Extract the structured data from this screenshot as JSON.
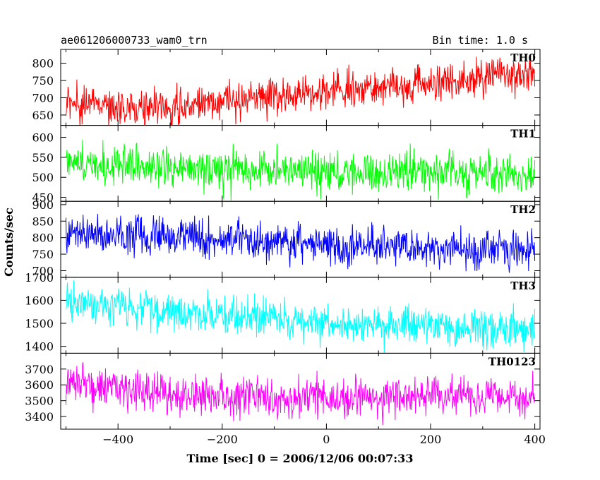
{
  "header": {
    "title": "ae061206000733_wam0_trn",
    "bin_time": "Bin time: 1.0 s"
  },
  "chart_data": {
    "type": "line",
    "xlabel": "Time [sec] 0 = 2006/12/06 00:07:33",
    "ylabel": "Counts/sec",
    "xlim": [
      -510,
      410
    ],
    "x_ticks": [
      -400,
      -200,
      0,
      200,
      400
    ],
    "x_tick_labels": [
      "−400",
      "−200",
      "0",
      "200",
      "400"
    ],
    "x_range": [
      -500,
      400
    ],
    "bin_seconds": 1.0,
    "grid": false,
    "legend": "none",
    "panels": [
      {
        "name": "TH0",
        "color": "#ff0000",
        "ylim": [
          620,
          840
        ],
        "y_ticks": [
          650,
          700,
          750,
          800
        ],
        "trend": [
          [
            -500,
            680
          ],
          [
            -400,
            675
          ],
          [
            -300,
            675
          ],
          [
            -200,
            690
          ],
          [
            -100,
            700
          ],
          [
            0,
            715
          ],
          [
            100,
            730
          ],
          [
            200,
            745
          ],
          [
            300,
            760
          ],
          [
            400,
            775
          ]
        ],
        "noise_sigma": 28
      },
      {
        "name": "TH1",
        "color": "#00ff00",
        "ylim": [
          440,
          630
        ],
        "y_ticks": [
          450,
          500,
          550,
          600
        ],
        "trend": [
          [
            -500,
            540
          ],
          [
            -400,
            533
          ],
          [
            -300,
            528
          ],
          [
            -200,
            522
          ],
          [
            -100,
            518
          ],
          [
            0,
            515
          ],
          [
            100,
            513
          ],
          [
            200,
            512
          ],
          [
            300,
            510
          ],
          [
            400,
            507
          ]
        ],
        "noise_sigma": 25
      },
      {
        "name": "TH2",
        "color": "#0000ff",
        "ylim": [
          680,
          910
        ],
        "y_ticks": [
          700,
          750,
          800,
          850,
          900
        ],
        "trend": [
          [
            -500,
            820
          ],
          [
            -400,
            815
          ],
          [
            -300,
            805
          ],
          [
            -200,
            795
          ],
          [
            -100,
            790
          ],
          [
            0,
            780
          ],
          [
            100,
            775
          ],
          [
            200,
            770
          ],
          [
            300,
            765
          ],
          [
            400,
            760
          ]
        ],
        "noise_sigma": 30
      },
      {
        "name": "TH3",
        "color": "#00ffff",
        "ylim": [
          1370,
          1700
        ],
        "y_ticks": [
          1400,
          1500,
          1600,
          1700
        ],
        "trend": [
          [
            -500,
            1590
          ],
          [
            -400,
            1575
          ],
          [
            -300,
            1550
          ],
          [
            -200,
            1530
          ],
          [
            -100,
            1515
          ],
          [
            0,
            1500
          ],
          [
            100,
            1490
          ],
          [
            200,
            1485
          ],
          [
            300,
            1480
          ],
          [
            400,
            1475
          ]
        ],
        "noise_sigma": 42
      },
      {
        "name": "TH0123",
        "color": "#ff00ff",
        "ylim": [
          3320,
          3800
        ],
        "y_ticks": [
          3400,
          3500,
          3600,
          3700
        ],
        "trend": [
          [
            -500,
            3620
          ],
          [
            -400,
            3580
          ],
          [
            -300,
            3550
          ],
          [
            -200,
            3530
          ],
          [
            -100,
            3520
          ],
          [
            0,
            3515
          ],
          [
            100,
            3515
          ],
          [
            200,
            3520
          ],
          [
            300,
            3520
          ],
          [
            400,
            3520
          ]
        ],
        "noise_sigma": 65
      }
    ]
  }
}
